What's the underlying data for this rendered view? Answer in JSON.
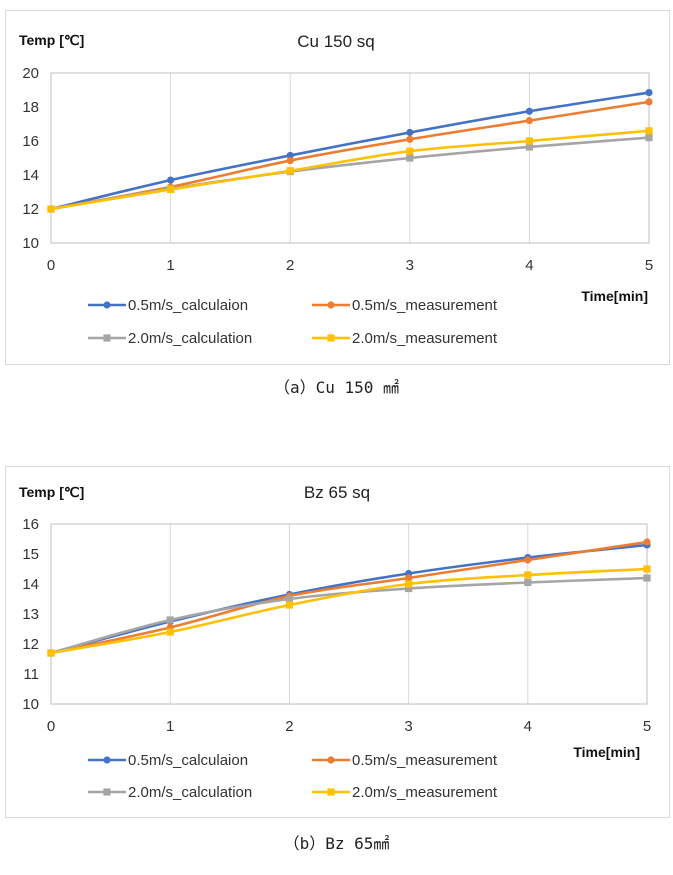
{
  "chart_data": [
    {
      "type": "line",
      "title": "Cu 150 sq",
      "ylabel": "Temp [℃]",
      "xlabel": "Time[min]",
      "x": [
        0,
        1,
        2,
        3,
        4,
        5
      ],
      "xlim": [
        0,
        5
      ],
      "ylim": [
        10,
        20
      ],
      "yticks": [
        10,
        12,
        14,
        16,
        18,
        20
      ],
      "grid": "vertical",
      "legend_position": "bottom",
      "caption": "（a）Cu 150 ㎟",
      "series": [
        {
          "name": "0.5m/s_calculaion",
          "color": "#4472C4",
          "marker": "circle",
          "values": [
            12.0,
            13.7,
            15.15,
            16.5,
            17.75,
            18.85
          ]
        },
        {
          "name": "0.5m/s_measurement",
          "color": "#ED7D31",
          "marker": "circle",
          "values": [
            12.0,
            13.3,
            14.85,
            16.1,
            17.2,
            18.3
          ]
        },
        {
          "name": "2.0m/s_calculation",
          "color": "#A5A5A5",
          "marker": "square",
          "values": [
            12.0,
            13.2,
            14.2,
            15.0,
            15.65,
            16.2
          ]
        },
        {
          "name": "2.0m/s_measurement",
          "color": "#FFC000",
          "marker": "square",
          "values": [
            12.0,
            13.15,
            14.25,
            15.4,
            16.0,
            16.6
          ]
        }
      ]
    },
    {
      "type": "line",
      "title": "Bz 65 sq",
      "ylabel": "Temp [℃]",
      "xlabel": "Time[min]",
      "x": [
        0,
        1,
        2,
        3,
        4,
        5
      ],
      "xlim": [
        0,
        5
      ],
      "ylim": [
        10,
        16
      ],
      "yticks": [
        10,
        11,
        12,
        13,
        14,
        15,
        16
      ],
      "grid": "vertical",
      "legend_position": "bottom",
      "caption": "（b）Bz 65㎟",
      "series": [
        {
          "name": "0.5m/s_calculaion",
          "color": "#4472C4",
          "marker": "circle",
          "values": [
            11.7,
            12.75,
            13.65,
            14.35,
            14.88,
            15.3
          ]
        },
        {
          "name": "0.5m/s_measurement",
          "color": "#ED7D31",
          "marker": "circle",
          "values": [
            11.7,
            12.55,
            13.6,
            14.2,
            14.8,
            15.4
          ]
        },
        {
          "name": "2.0m/s_calculation",
          "color": "#A5A5A5",
          "marker": "square",
          "values": [
            11.7,
            12.8,
            13.5,
            13.85,
            14.05,
            14.2
          ]
        },
        {
          "name": "2.0m/s_measurement",
          "color": "#FFC000",
          "marker": "square",
          "values": [
            11.7,
            12.4,
            13.3,
            14.0,
            14.3,
            14.5
          ]
        }
      ]
    }
  ]
}
